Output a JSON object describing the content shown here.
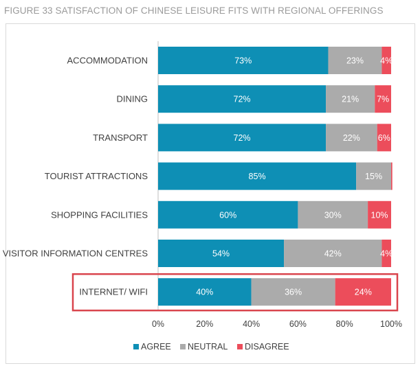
{
  "chart_data": {
    "type": "bar",
    "orientation": "horizontal",
    "stacked": true,
    "title": "FIGURE 33 SATISFACTION OF CHINESE LEISURE FITS WITH REGIONAL OFFERINGS",
    "categories": [
      "ACCOMMODATION",
      "DINING",
      "TRANSPORT",
      "TOURIST ATTRACTIONS",
      "SHOPPING FACILITIES",
      "VISITOR INFORMATION CENTRES",
      "INTERNET/ WIFI"
    ],
    "series": [
      {
        "name": "AGREE",
        "color": "#0e8fb5",
        "values": [
          73,
          72,
          72,
          85,
          60,
          54,
          40
        ],
        "labels": [
          "73%",
          "72%",
          "72%",
          "85%",
          "60%",
          "54%",
          "40%"
        ]
      },
      {
        "name": "NEUTRAL",
        "color": "#ababab",
        "values": [
          23,
          21,
          22,
          15,
          30,
          42,
          36
        ],
        "labels": [
          "23%",
          "21%",
          "22%",
          "15%",
          "30%",
          "42%",
          "36%"
        ]
      },
      {
        "name": "DISAGREE",
        "color": "#ec4d5b",
        "values": [
          4,
          7,
          6,
          0.5,
          10,
          4,
          24
        ],
        "labels": [
          "4%",
          "7%",
          "6%",
          "",
          "10%",
          "4%",
          "24%"
        ]
      }
    ],
    "xlim": [
      0,
      100
    ],
    "xticks": [
      "0%",
      "20%",
      "40%",
      "60%",
      "80%",
      "100%"
    ],
    "legend_position": "bottom",
    "highlight_category": "INTERNET/ WIFI",
    "highlight_color": "#d9444c"
  }
}
